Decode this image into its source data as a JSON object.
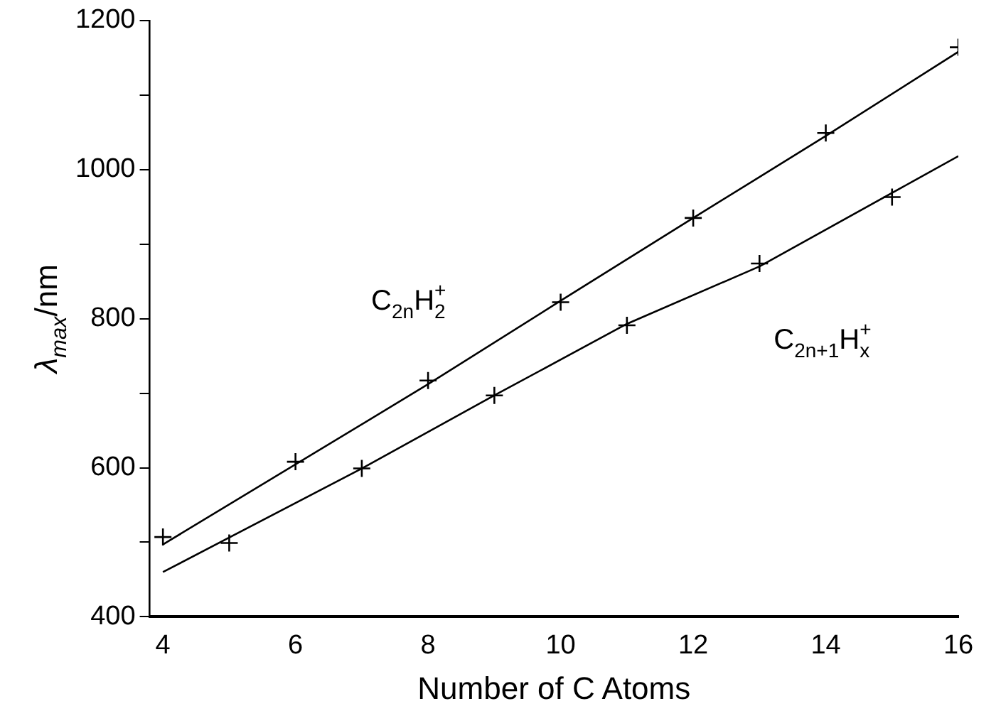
{
  "chart_data": {
    "type": "scatter",
    "xlabel": "Number of C Atoms",
    "ylabel": "λ$_{max}$/nm",
    "xlim": [
      3.8,
      16
    ],
    "xticks": [
      4,
      6,
      8,
      10,
      12,
      14,
      16
    ],
    "ylim": [
      400,
      1200
    ],
    "yticks": [
      400,
      {
        "value": 500,
        "label": null
      },
      600,
      {
        "value": 700,
        "label": null
      },
      800,
      {
        "value": 900,
        "label": null
      },
      1000,
      {
        "value": 1100,
        "label": null
      },
      1200
    ],
    "grid": false,
    "legend": false,
    "marker": "cross",
    "series": [
      {
        "name": "C$_{2n}$H$_{2}$$^{+}$",
        "color": "#000000",
        "x": [
          4,
          6,
          8,
          10,
          12,
          14,
          16
        ],
        "values": [
          507,
          608,
          717,
          822,
          935,
          1049,
          1164
        ]
      },
      {
        "name": "C$_{2n+1}$H$_{x}$$^{+}$",
        "color": "#000000",
        "x": [
          5,
          7,
          9,
          11,
          13,
          15
        ],
        "values": [
          499,
          599,
          697,
          791,
          874,
          963
        ]
      },
      {
        "type": "line",
        "color": "#000000",
        "marker": "none",
        "line_style": "solid",
        "x": [
          4,
          8,
          10,
          12,
          14,
          16
        ],
        "values": [
          497,
          712,
          824,
          935,
          1045,
          1158
        ]
      },
      {
        "type": "line",
        "color": "#000000",
        "marker": "none",
        "line_style": "solid",
        "x": [
          4,
          7,
          9,
          11,
          13,
          16
        ],
        "values": [
          460,
          599,
          697,
          793,
          870,
          1018
        ]
      }
    ]
  }
}
